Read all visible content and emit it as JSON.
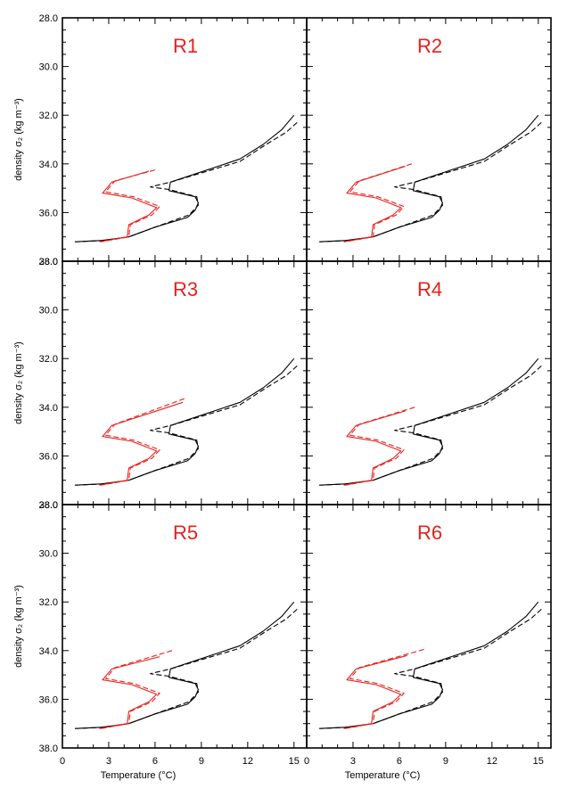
{
  "figure": {
    "ylabel": "density σ₂ (kg m⁻³)",
    "xlabel": "Temperature (°C)"
  },
  "colors": {
    "black_series": "#000000",
    "red_series": "#e8201c",
    "title": "#e8201c"
  },
  "chart_data": [
    {
      "type": "line",
      "title": "R1",
      "xlim": [
        0,
        16
      ],
      "ylim": [
        38,
        28
      ],
      "xticks": [
        "0",
        "3",
        "6",
        "9",
        "12",
        "15"
      ],
      "yticks": [
        "28.0",
        "30.0",
        "32.0",
        "34.0",
        "36.0",
        "38.0"
      ],
      "series": [
        {
          "style": "solid",
          "color": "black",
          "x": [
            15.0,
            14.2,
            13.0,
            11.5,
            7.0,
            6.9,
            8.6,
            8.8,
            8.6,
            8.1,
            6.0,
            4.3,
            2.5,
            0.8
          ],
          "y": [
            32.0,
            32.6,
            33.2,
            33.8,
            34.75,
            35.1,
            35.35,
            35.6,
            35.9,
            36.2,
            36.6,
            37.0,
            37.15,
            37.2
          ]
        },
        {
          "style": "dashed",
          "color": "black",
          "x": [
            15.2,
            14.5,
            13.2,
            11.5,
            7.0,
            5.7,
            6.9,
            8.7,
            8.8,
            8.2,
            6.0,
            4.3,
            2.6,
            0.9
          ],
          "y": [
            32.3,
            32.7,
            33.2,
            33.9,
            34.75,
            34.95,
            35.05,
            35.35,
            35.7,
            36.1,
            36.6,
            37.0,
            37.15,
            37.2
          ]
        },
        {
          "style": "solid",
          "color": "red",
          "x": [
            5.6,
            3.2,
            2.6,
            4.5,
            6.1,
            5.6,
            4.3,
            4.2,
            2.4
          ],
          "y": [
            34.3,
            34.75,
            35.2,
            35.4,
            35.8,
            36.1,
            36.5,
            37.0,
            37.2
          ]
        },
        {
          "style": "dashed",
          "color": "red",
          "x": [
            6.0,
            3.4,
            2.8,
            4.6,
            6.3,
            5.8,
            4.4,
            4.3,
            2.5
          ],
          "y": [
            34.25,
            34.7,
            35.15,
            35.35,
            35.75,
            36.1,
            36.5,
            37.0,
            37.2
          ]
        }
      ]
    },
    {
      "type": "line",
      "title": "R2",
      "xlim": [
        0,
        16
      ],
      "ylim": [
        38,
        28
      ],
      "xticks": [
        "0",
        "3",
        "6",
        "9",
        "12",
        "15"
      ],
      "yticks": [
        "28.0",
        "30.0",
        "32.0",
        "34.0",
        "36.0",
        "38.0"
      ],
      "series": [
        {
          "style": "solid",
          "color": "black",
          "x": [
            15.0,
            14.2,
            13.0,
            11.5,
            7.0,
            6.9,
            8.6,
            8.8,
            8.6,
            8.1,
            6.0,
            4.3,
            2.5,
            0.8
          ],
          "y": [
            32.0,
            32.6,
            33.2,
            33.8,
            34.75,
            35.1,
            35.35,
            35.6,
            35.9,
            36.2,
            36.6,
            37.0,
            37.15,
            37.2
          ]
        },
        {
          "style": "dashed",
          "color": "black",
          "x": [
            15.2,
            14.5,
            13.2,
            11.5,
            7.0,
            5.7,
            6.9,
            8.7,
            8.8,
            8.2,
            6.0,
            4.3,
            2.6,
            0.9
          ],
          "y": [
            32.3,
            32.7,
            33.2,
            33.9,
            34.75,
            34.95,
            35.05,
            35.35,
            35.7,
            36.1,
            36.6,
            37.0,
            37.15,
            37.2
          ]
        },
        {
          "style": "solid",
          "color": "red",
          "x": [
            6.4,
            3.2,
            2.6,
            4.5,
            6.1,
            5.6,
            4.3,
            4.2,
            2.4
          ],
          "y": [
            34.1,
            34.75,
            35.2,
            35.4,
            35.8,
            36.1,
            36.5,
            37.0,
            37.2
          ]
        },
        {
          "style": "dashed",
          "color": "red",
          "x": [
            6.8,
            3.4,
            2.8,
            4.6,
            6.3,
            5.8,
            4.4,
            4.3,
            2.5
          ],
          "y": [
            34.0,
            34.7,
            35.15,
            35.35,
            35.75,
            36.1,
            36.5,
            37.0,
            37.2
          ]
        }
      ]
    },
    {
      "type": "line",
      "title": "R3",
      "xlim": [
        0,
        16
      ],
      "ylim": [
        38,
        28
      ],
      "xticks": [
        "0",
        "3",
        "6",
        "9",
        "12",
        "15"
      ],
      "yticks": [
        "28.0",
        "30.0",
        "32.0",
        "34.0",
        "36.0",
        "38.0"
      ],
      "series": [
        {
          "style": "solid",
          "color": "black",
          "x": [
            15.0,
            14.2,
            13.0,
            11.5,
            7.0,
            6.9,
            8.6,
            8.8,
            8.6,
            8.1,
            6.0,
            4.3,
            2.5,
            0.8
          ],
          "y": [
            32.0,
            32.6,
            33.2,
            33.8,
            34.75,
            35.1,
            35.35,
            35.6,
            35.9,
            36.2,
            36.6,
            37.0,
            37.15,
            37.2
          ]
        },
        {
          "style": "dashed",
          "color": "black",
          "x": [
            15.2,
            14.5,
            13.2,
            11.5,
            7.0,
            5.7,
            6.9,
            8.7,
            8.8,
            8.2,
            6.0,
            4.3,
            2.6,
            0.9
          ],
          "y": [
            32.3,
            32.7,
            33.2,
            33.9,
            34.75,
            34.95,
            35.05,
            35.35,
            35.7,
            36.1,
            36.6,
            37.0,
            37.15,
            37.2
          ]
        },
        {
          "style": "solid",
          "color": "red",
          "x": [
            7.8,
            3.2,
            2.6,
            4.5,
            6.1,
            5.6,
            4.3,
            4.2,
            2.4
          ],
          "y": [
            33.8,
            34.75,
            35.2,
            35.4,
            35.8,
            36.1,
            36.5,
            37.0,
            37.2
          ]
        },
        {
          "style": "dashed",
          "color": "red",
          "x": [
            7.9,
            3.4,
            2.8,
            4.6,
            6.3,
            5.8,
            4.4,
            4.3,
            2.5
          ],
          "y": [
            33.65,
            34.7,
            35.15,
            35.35,
            35.75,
            36.1,
            36.5,
            37.0,
            37.2
          ]
        }
      ]
    },
    {
      "type": "line",
      "title": "R4",
      "xlim": [
        0,
        16
      ],
      "ylim": [
        38,
        28
      ],
      "xticks": [
        "0",
        "3",
        "6",
        "9",
        "12",
        "15"
      ],
      "yticks": [
        "28.0",
        "30.0",
        "32.0",
        "34.0",
        "36.0",
        "38.0"
      ],
      "series": [
        {
          "style": "solid",
          "color": "black",
          "x": [
            15.0,
            14.2,
            13.0,
            11.5,
            7.0,
            6.9,
            8.6,
            8.8,
            8.6,
            8.1,
            6.0,
            4.3,
            2.5,
            0.8
          ],
          "y": [
            32.0,
            32.6,
            33.2,
            33.8,
            34.75,
            35.1,
            35.35,
            35.6,
            35.9,
            36.2,
            36.6,
            37.0,
            37.15,
            37.2
          ]
        },
        {
          "style": "dashed",
          "color": "black",
          "x": [
            15.2,
            14.5,
            13.2,
            11.5,
            7.0,
            5.7,
            6.9,
            8.7,
            8.8,
            8.2,
            6.0,
            4.3,
            2.6,
            0.9
          ],
          "y": [
            32.3,
            32.7,
            33.2,
            33.9,
            34.75,
            34.95,
            35.05,
            35.35,
            35.7,
            36.1,
            36.6,
            37.0,
            37.15,
            37.2
          ]
        },
        {
          "style": "solid",
          "color": "red",
          "x": [
            6.4,
            3.2,
            2.6,
            4.5,
            6.1,
            5.6,
            4.3,
            4.2,
            2.4
          ],
          "y": [
            34.15,
            34.75,
            35.2,
            35.4,
            35.8,
            36.1,
            36.5,
            37.0,
            37.2
          ]
        },
        {
          "style": "dashed",
          "color": "red",
          "x": [
            7.0,
            3.4,
            2.8,
            4.6,
            6.3,
            5.8,
            4.4,
            4.3,
            2.5
          ],
          "y": [
            34.0,
            34.7,
            35.15,
            35.35,
            35.75,
            36.1,
            36.5,
            37.0,
            37.2
          ]
        }
      ]
    },
    {
      "type": "line",
      "title": "R5",
      "xlim": [
        0,
        16
      ],
      "ylim": [
        38,
        28
      ],
      "xticks": [
        "0",
        "3",
        "6",
        "9",
        "12",
        "15"
      ],
      "yticks": [
        "28.0",
        "30.0",
        "32.0",
        "34.0",
        "36.0",
        "38.0"
      ],
      "series": [
        {
          "style": "solid",
          "color": "black",
          "x": [
            15.0,
            14.2,
            13.0,
            11.5,
            7.0,
            6.9,
            8.6,
            8.8,
            8.6,
            8.1,
            6.0,
            4.3,
            2.5,
            0.8
          ],
          "y": [
            32.0,
            32.6,
            33.2,
            33.8,
            34.75,
            35.1,
            35.35,
            35.6,
            35.9,
            36.2,
            36.6,
            37.0,
            37.15,
            37.2
          ]
        },
        {
          "style": "dashed",
          "color": "black",
          "x": [
            15.2,
            14.5,
            13.2,
            11.5,
            7.0,
            5.7,
            6.9,
            8.7,
            8.8,
            8.2,
            6.0,
            4.3,
            2.6,
            0.9
          ],
          "y": [
            32.3,
            32.7,
            33.2,
            33.9,
            34.75,
            34.95,
            35.05,
            35.35,
            35.7,
            36.1,
            36.6,
            37.0,
            37.15,
            37.2
          ]
        },
        {
          "style": "solid",
          "color": "red",
          "x": [
            6.3,
            3.2,
            2.6,
            4.5,
            6.1,
            5.6,
            4.3,
            4.2,
            2.4
          ],
          "y": [
            34.25,
            34.75,
            35.2,
            35.4,
            35.8,
            36.1,
            36.5,
            37.0,
            37.2
          ]
        },
        {
          "style": "dashed",
          "color": "red",
          "x": [
            7.1,
            3.4,
            2.8,
            4.6,
            6.3,
            5.8,
            4.4,
            4.3,
            2.5
          ],
          "y": [
            34.0,
            34.7,
            35.15,
            35.35,
            35.75,
            36.1,
            36.5,
            37.0,
            37.2
          ]
        }
      ]
    },
    {
      "type": "line",
      "title": "R6",
      "xlim": [
        0,
        16
      ],
      "ylim": [
        38,
        28
      ],
      "xticks": [
        "0",
        "3",
        "6",
        "9",
        "12",
        "15"
      ],
      "yticks": [
        "28.0",
        "30.0",
        "32.0",
        "34.0",
        "36.0",
        "38.0"
      ],
      "series": [
        {
          "style": "solid",
          "color": "black",
          "x": [
            15.0,
            14.2,
            13.0,
            11.5,
            7.0,
            6.9,
            8.6,
            8.8,
            8.6,
            8.1,
            6.0,
            4.3,
            2.5,
            0.8
          ],
          "y": [
            32.0,
            32.6,
            33.2,
            33.8,
            34.75,
            35.1,
            35.35,
            35.6,
            35.9,
            36.2,
            36.6,
            37.0,
            37.15,
            37.2
          ]
        },
        {
          "style": "dashed",
          "color": "black",
          "x": [
            15.2,
            14.5,
            13.2,
            11.5,
            7.0,
            5.7,
            6.9,
            8.7,
            8.8,
            8.2,
            6.0,
            4.3,
            2.6,
            0.9
          ],
          "y": [
            32.3,
            32.7,
            33.2,
            33.9,
            34.75,
            34.95,
            35.05,
            35.35,
            35.7,
            36.1,
            36.6,
            37.0,
            37.15,
            37.2
          ]
        },
        {
          "style": "solid",
          "color": "red",
          "x": [
            6.5,
            3.2,
            2.6,
            4.5,
            6.1,
            5.6,
            4.3,
            4.2,
            2.4
          ],
          "y": [
            34.2,
            34.75,
            35.2,
            35.4,
            35.8,
            36.1,
            36.5,
            37.0,
            37.2
          ]
        },
        {
          "style": "dashed",
          "color": "red",
          "x": [
            7.6,
            3.4,
            2.8,
            4.6,
            6.3,
            5.8,
            4.4,
            4.3,
            2.5
          ],
          "y": [
            33.95,
            34.7,
            35.15,
            35.35,
            35.75,
            36.1,
            36.5,
            37.0,
            37.2
          ]
        }
      ]
    }
  ]
}
